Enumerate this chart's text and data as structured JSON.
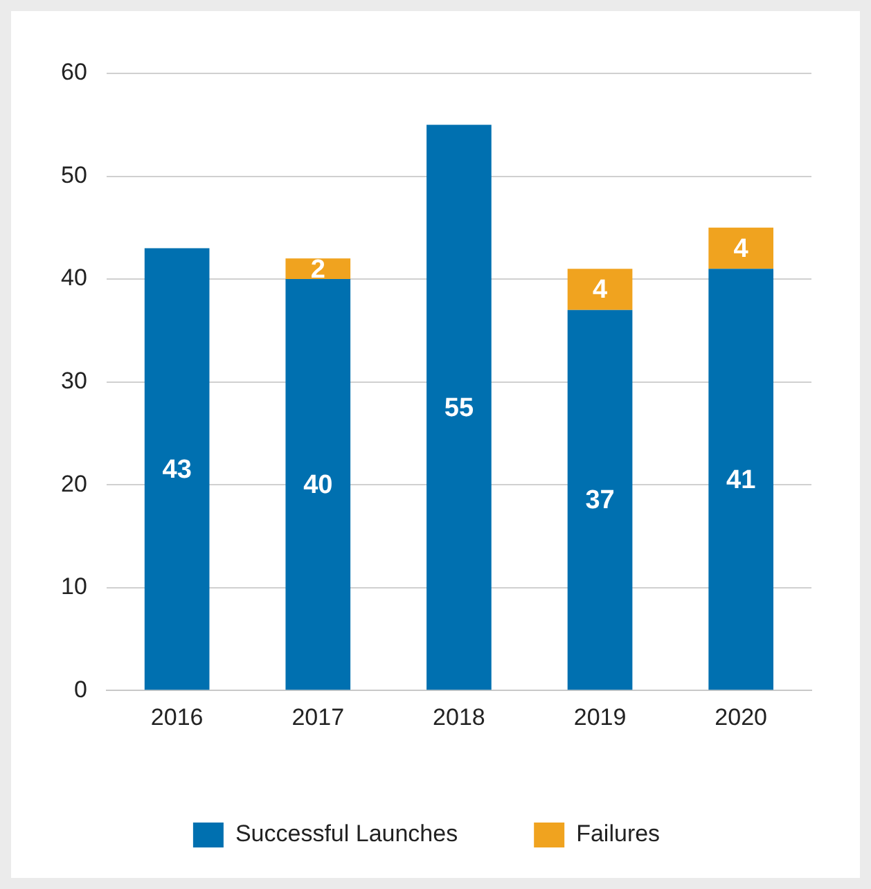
{
  "chart_data": {
    "type": "bar",
    "stacked": true,
    "categories": [
      "2016",
      "2017",
      "2018",
      "2019",
      "2020"
    ],
    "series": [
      {
        "name": "Successful Launches",
        "color": "#0070b0",
        "values": [
          43,
          40,
          55,
          37,
          41
        ]
      },
      {
        "name": "Failures",
        "color": "#f0a31f",
        "values": [
          null,
          2,
          null,
          4,
          4
        ]
      }
    ],
    "ylim": [
      0,
      60
    ],
    "yticks": [
      0,
      10,
      20,
      30,
      40,
      50,
      60
    ],
    "grid": "y",
    "legend": "bottom",
    "data_labels": true
  }
}
